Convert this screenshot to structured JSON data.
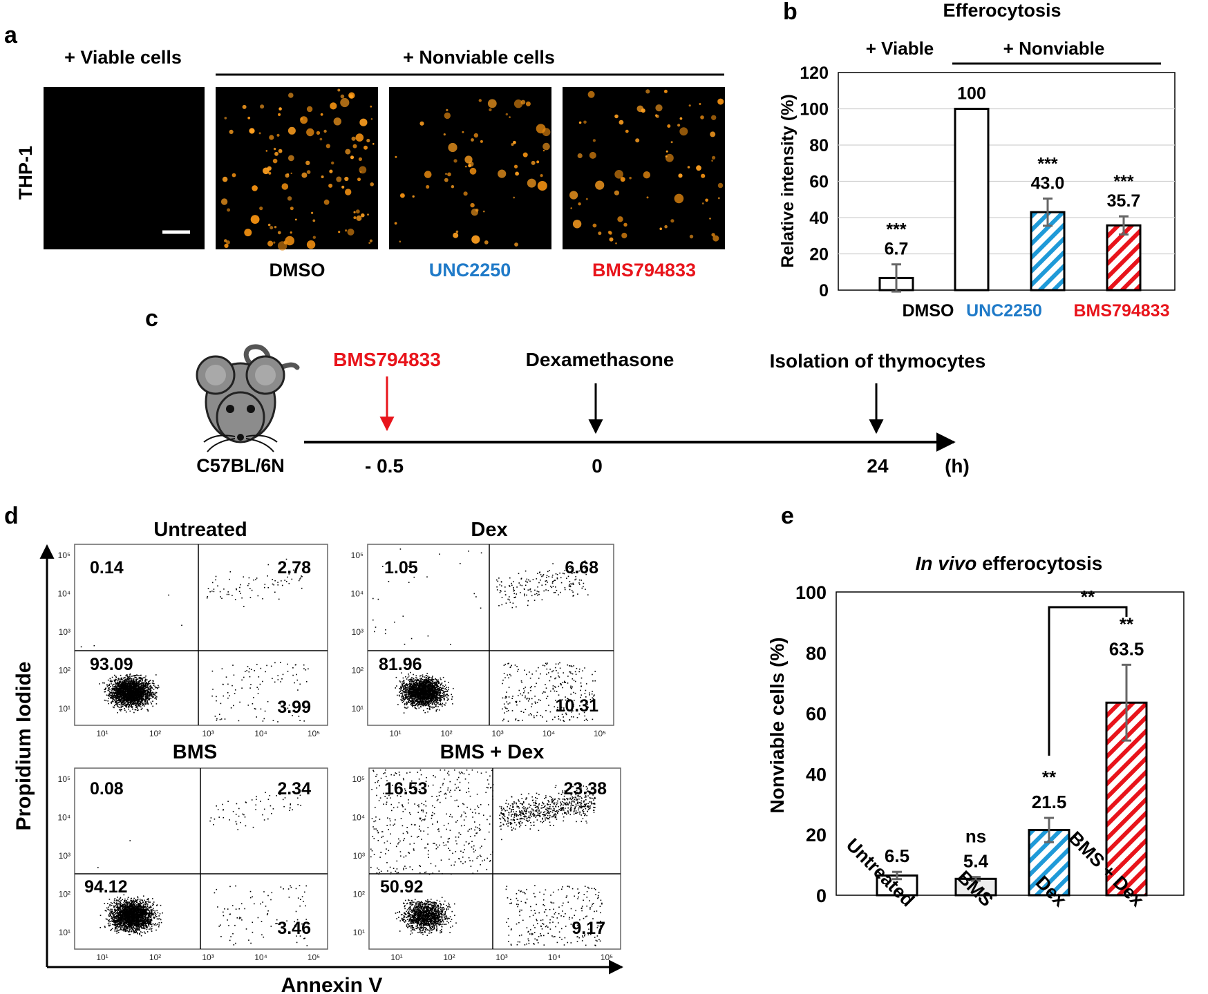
{
  "figure": {
    "panel_labels": {
      "a": "a",
      "b": "b",
      "c": "c",
      "d": "d",
      "e": "e"
    },
    "colors": {
      "blue": "#1f7ac8",
      "red": "#e8141b",
      "orange": "#ffa020",
      "black": "#000000",
      "grey": "#555555"
    }
  },
  "panel_a": {
    "header_viable": "+ Viable cells",
    "header_nonviable": "+ Nonviable cells",
    "row_label": "THP-1",
    "images": [
      {
        "label": "",
        "type": "black-micrograph"
      },
      {
        "label": "DMSO",
        "type": "fluorescence-dense"
      },
      {
        "label": "UNC2250",
        "type": "fluorescence-medium"
      },
      {
        "label": "BMS794833",
        "type": "fluorescence-sparse"
      }
    ]
  },
  "panel_b": {
    "chart_data": {
      "type": "bar",
      "title": "Efferocytosis",
      "group_labels": [
        "+ Viable",
        "+ Nonviable"
      ],
      "categories": [
        "",
        "DMSO",
        "UNC2250",
        "BMS794833"
      ],
      "values": [
        6.7,
        100,
        43.0,
        35.7
      ],
      "value_labels": [
        "6.7",
        "100",
        "43.0",
        "35.7"
      ],
      "error": [
        7.5,
        0,
        7.5,
        5
      ],
      "significance": [
        "***",
        "",
        "***",
        "***"
      ],
      "ylabel": "Relative intensity (%)",
      "ylim": [
        0,
        120
      ],
      "yticks": [
        0,
        20,
        40,
        60,
        80,
        100,
        120
      ],
      "grid": true,
      "fills": [
        "white",
        "white",
        "blue-hatch",
        "red-hatch"
      ]
    }
  },
  "panel_c": {
    "mouse_strain": "C57BL/6N",
    "events": [
      {
        "label": "BMS794833",
        "time": "- 0.5",
        "t": -0.5,
        "color": "red"
      },
      {
        "label": "Dexamethasone",
        "time": "0",
        "t": 0,
        "color": "black"
      },
      {
        "label": "Isolation of thymocytes",
        "time": "24",
        "t": 24,
        "color": "black"
      }
    ],
    "unit": "(h)"
  },
  "panel_d": {
    "xlabel": "Annexin V",
    "ylabel": "Propidium Iodide",
    "plots": [
      {
        "title": "Untreated",
        "ul": "0.14",
        "ur": "2.78",
        "ll": "93.09",
        "lr": "3.99",
        "ticks": [
          "10¹",
          "10²",
          "10³",
          "10⁴",
          "10⁵"
        ]
      },
      {
        "title": "Dex",
        "ul": "1.05",
        "ur": "6.68",
        "ll": "81.96",
        "lr": "10.31",
        "ticks": [
          "10¹",
          "10²",
          "10³",
          "10⁴",
          "10⁵"
        ]
      },
      {
        "title": "BMS",
        "ul": "0.08",
        "ur": "2.34",
        "ll": "94.12",
        "lr": "3.46",
        "ticks": [
          "10¹",
          "10²",
          "10³",
          "10⁴",
          "10⁵"
        ]
      },
      {
        "title": "BMS + Dex",
        "ul": "16.53",
        "ur": "23.38",
        "ll": "50.92",
        "lr": "9.17",
        "ticks": [
          "10¹",
          "10²",
          "10³",
          "10⁴",
          "10⁵"
        ]
      }
    ]
  },
  "panel_e": {
    "chart_data": {
      "type": "bar",
      "title_italic": "In vivo",
      "title_rest": " efferocytosis",
      "categories": [
        "Untreated",
        "BMS",
        "Dex",
        "BMS + Dex"
      ],
      "values": [
        6.5,
        5.4,
        21.5,
        63.5
      ],
      "value_labels": [
        "6.5",
        "5.4",
        "21.5",
        "63.5"
      ],
      "error": [
        1.2,
        0.6,
        4,
        12.5
      ],
      "significance": [
        "",
        "ns",
        "**",
        "**"
      ],
      "bracket": {
        "from": "Dex",
        "to": "BMS + Dex",
        "label": "**"
      },
      "ylabel": "Nonviable cells (%)",
      "ylim": [
        0,
        100
      ],
      "yticks": [
        0,
        20,
        40,
        60,
        80,
        100
      ],
      "grid": false,
      "fills": [
        "white",
        "lightgrey",
        "blue-hatch",
        "red-hatch"
      ]
    }
  }
}
